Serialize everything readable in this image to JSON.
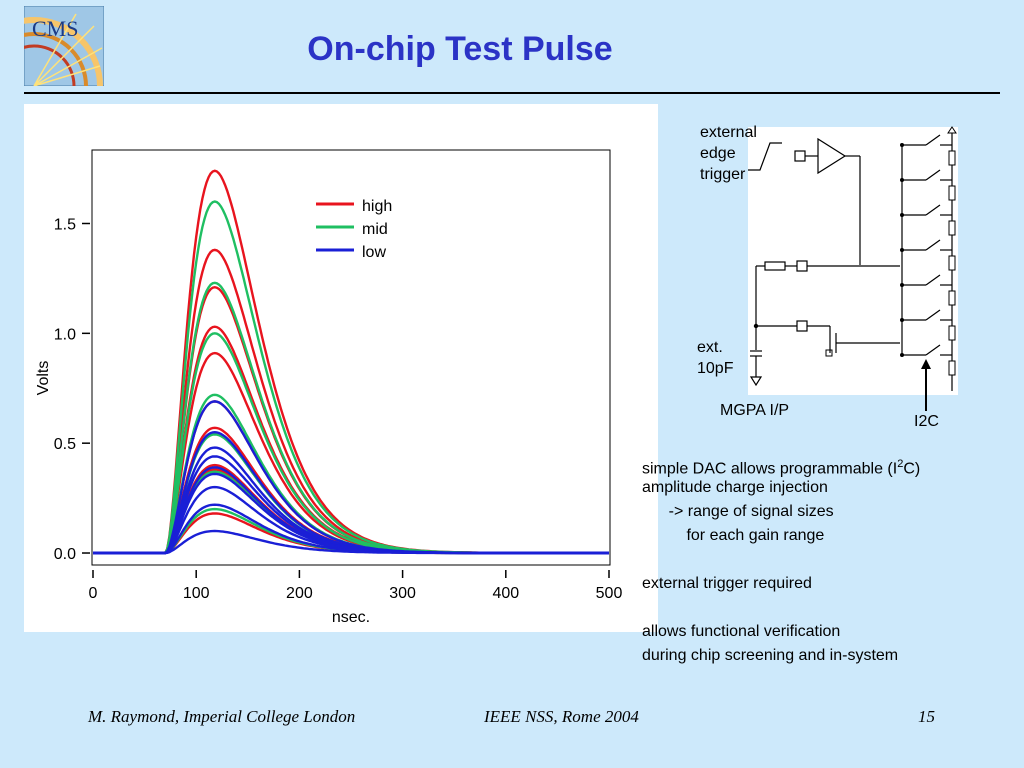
{
  "slide": {
    "title": "On-chip Test Pulse",
    "logo_text": "CMS"
  },
  "circuit": {
    "trigger_label": [
      "external",
      "edge",
      "trigger"
    ],
    "cap_label": [
      "ext.",
      "10pF"
    ],
    "input_label": "MGPA I/P",
    "bus_label": "I2C"
  },
  "notes": {
    "line1_pre": "simple DAC allows programmable (I",
    "line1_sup": "2",
    "line1_post": "C)",
    "line2": "amplitude charge injection",
    "line3": "      -> range of signal sizes",
    "line4": "          for each gain range",
    "line5": "external trigger required",
    "line6": "allows functional verification",
    "line7": "during chip screening and in-system"
  },
  "footer": {
    "author": "M. Raymond, Imperial College London",
    "conference": "IEEE NSS, Rome 2004",
    "page": "15"
  },
  "colors": {
    "title": "#2b33c6",
    "background": "#cde9fb",
    "high": "#e8141e",
    "mid": "#1fbf62",
    "low": "#1a1fd6"
  },
  "chart_data": {
    "type": "line",
    "title": "",
    "xlabel": "nsec.",
    "ylabel": "Volts",
    "xlim": [
      0,
      500
    ],
    "ylim": [
      -0.05,
      1.83
    ],
    "xticks": [
      "0",
      "100",
      "200",
      "300",
      "400",
      "500"
    ],
    "yticks": [
      "0.0",
      "0.5",
      "1.0",
      "1.5"
    ],
    "pulse_start_ns": 70,
    "peak_time_ns": 118,
    "legend": [
      "high",
      "mid",
      "low"
    ],
    "legend_position": "top-right",
    "series": [
      {
        "name": "high",
        "color": "#e8141e",
        "peaks": [
          1.74,
          1.38,
          1.21,
          1.03,
          0.91,
          0.69,
          0.57,
          0.4,
          0.38,
          0.18
        ]
      },
      {
        "name": "mid",
        "color": "#1fbf62",
        "peaks": [
          1.6,
          1.23,
          1.0,
          0.72,
          0.54,
          0.37,
          0.2
        ]
      },
      {
        "name": "low",
        "color": "#1a1fd6",
        "peaks": [
          0.69,
          0.55,
          0.48,
          0.44,
          0.39,
          0.36,
          0.3,
          0.22,
          0.1
        ]
      }
    ]
  }
}
